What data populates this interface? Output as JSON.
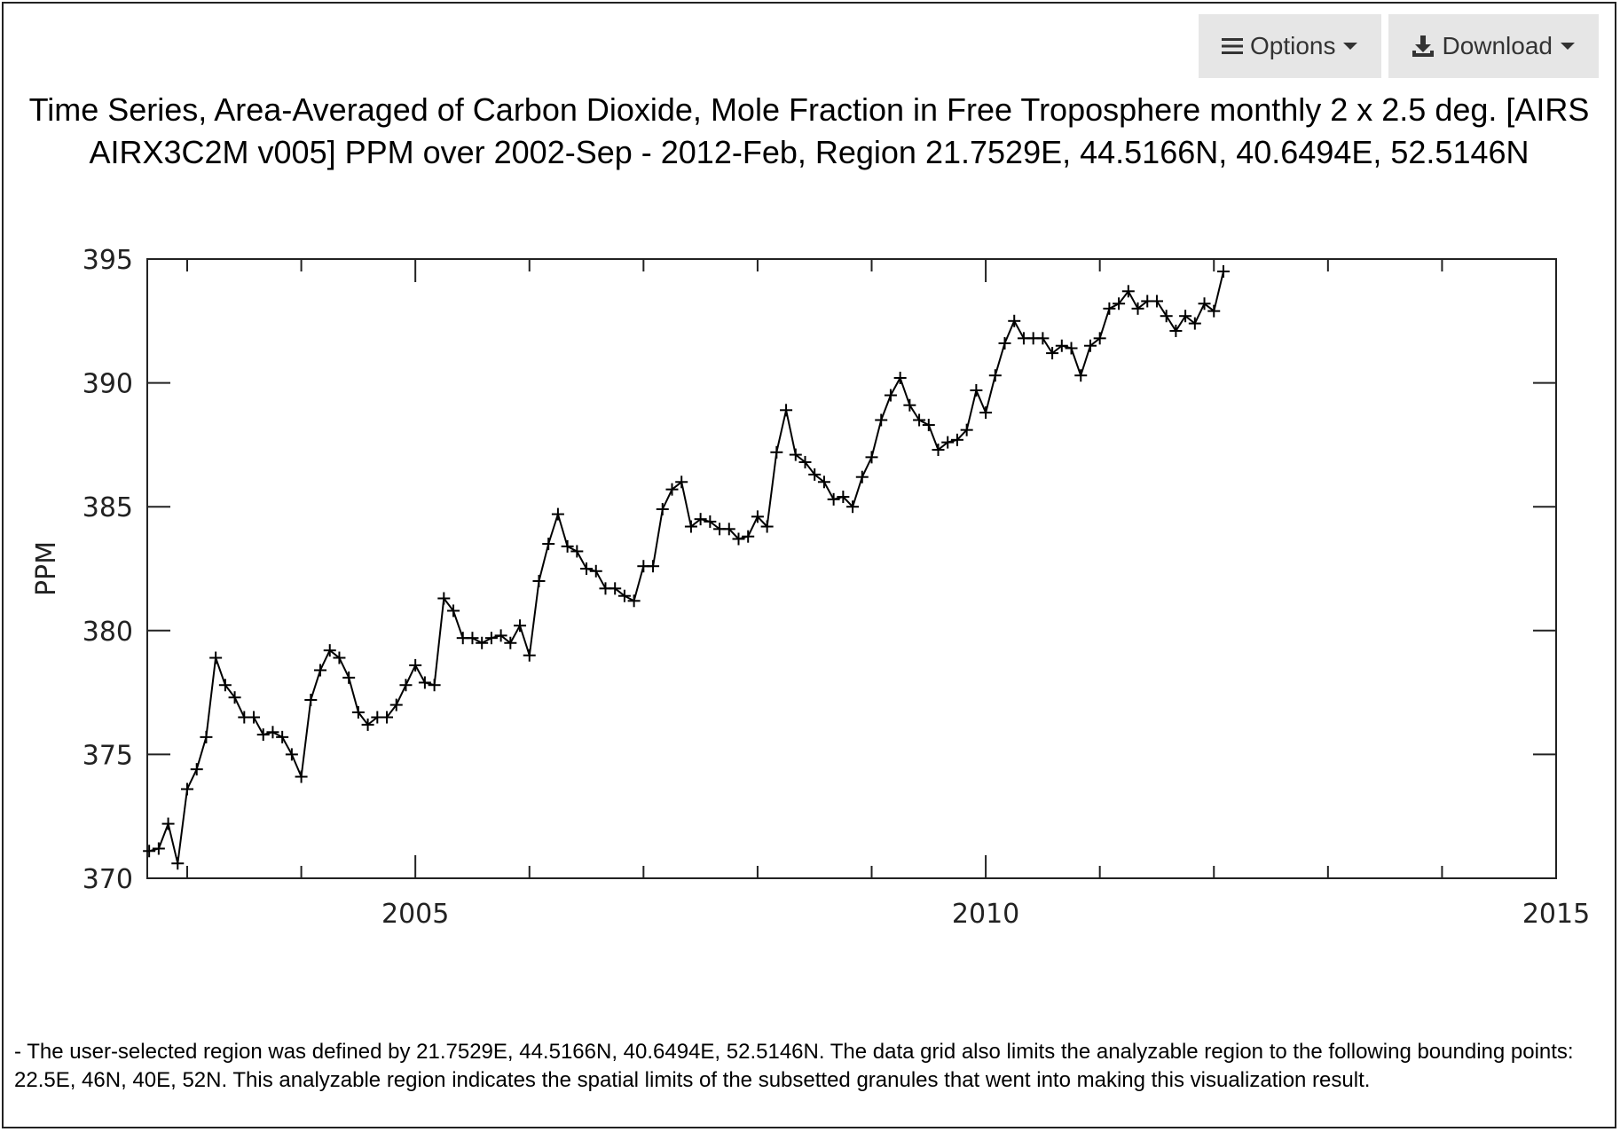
{
  "toolbar": {
    "options_label": "Options",
    "options_icon": "menu-icon",
    "download_label": "Download",
    "download_icon": "download-icon",
    "caret_icon": "caret-down-icon",
    "button_bg": "#e6e6e6"
  },
  "title": "Time Series, Area-Averaged of Carbon Dioxide, Mole Fraction in Free Troposphere monthly 2 x 2.5 deg. [AIRS AIRX3C2M v005] PPM over 2002-Sep - 2012-Feb, Region 21.7529E, 44.5166N, 40.6494E, 52.5146N",
  "note": "- The user-selected region was defined by 21.7529E, 44.5166N, 40.6494E, 52.5146N. The data grid also limits the analyzable region to the following bounding points: 22.5E, 46N, 40E, 52N. This analyzable region indicates the spatial limits of the subsetted granules that went into making this visualization result.",
  "chart_data": {
    "type": "line",
    "title": "Time Series, Area-Averaged of Carbon Dioxide, Mole Fraction in Free Troposphere monthly 2 x 2.5 deg. [AIRS AIRX3C2M v005] PPM over 2002-Sep - 2012-Feb, Region 21.7529E, 44.5166N, 40.6494E, 52.5146N",
    "xlabel": "",
    "ylabel": "PPM",
    "xlim": [
      2002.65,
      2015
    ],
    "ylim": [
      370,
      395
    ],
    "xticks": [
      2005,
      2010,
      2015
    ],
    "yticks": [
      370,
      375,
      380,
      385,
      390,
      395
    ],
    "grid": false,
    "legend": "none",
    "marker": "plus",
    "line_color": "#000000",
    "start": "2002-09",
    "end": "2012-02",
    "series": [
      {
        "values": [
          371.1,
          371.2,
          372.2,
          370.6,
          373.6,
          374.4,
          375.7,
          378.9,
          377.8,
          377.3,
          376.5,
          376.5,
          375.8,
          375.9,
          375.7,
          375.0,
          374.1,
          377.2,
          378.4,
          379.2,
          378.9,
          378.1,
          376.7,
          376.2,
          376.5,
          376.5,
          377.0,
          377.8,
          378.6,
          377.9,
          377.8,
          381.3,
          380.8,
          379.7,
          379.7,
          379.5,
          379.7,
          379.8,
          379.5,
          380.2,
          379.0,
          382.0,
          383.5,
          384.7,
          383.4,
          383.2,
          382.5,
          382.4,
          381.7,
          381.7,
          381.4,
          381.2,
          382.6,
          382.6,
          384.9,
          385.7,
          386.0,
          384.2,
          384.5,
          384.4,
          384.1,
          384.1,
          383.7,
          383.8,
          384.6,
          384.2,
          387.2,
          388.9,
          387.1,
          386.8,
          386.3,
          386.0,
          385.3,
          385.4,
          385.0,
          386.2,
          387.0,
          388.5,
          389.5,
          390.2,
          389.1,
          388.5,
          388.3,
          387.3,
          387.6,
          387.7,
          388.1,
          389.7,
          388.8,
          390.3,
          391.6,
          392.5,
          391.8,
          391.8,
          391.8,
          391.2,
          391.5,
          391.4,
          390.3,
          391.5,
          391.8,
          393.0,
          393.2,
          393.7,
          393.0,
          393.3,
          393.3,
          392.7,
          392.1,
          392.7,
          392.4,
          393.2,
          392.9,
          394.5
        ]
      }
    ]
  }
}
